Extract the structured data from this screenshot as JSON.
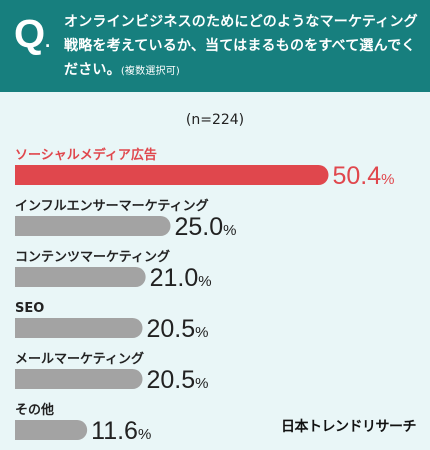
{
  "question": {
    "mark": "Q",
    "text": "オンラインビジネスのためにどのようなマーケティング戦略を考えているか、当てはまるものをすべて選んでください。",
    "note": "(複数選択可)"
  },
  "sample_label": "(n=224)",
  "brand": "日本トレンドリサーチ",
  "colors": {
    "header_bg": "#177f7e",
    "background": "#e9f6f7",
    "highlight": "#e0474d",
    "bar": "#a3a3a3"
  },
  "chart_data": {
    "type": "bar",
    "orientation": "horizontal",
    "unit": "%",
    "categories": [
      "ソーシャルメディア広告",
      "インフルエンサーマーケティング",
      "コンテンツマーケティング",
      "SEO",
      "メールマーケティング",
      "その他"
    ],
    "values": [
      50.4,
      25.0,
      21.0,
      20.5,
      20.5,
      11.6
    ],
    "value_labels": [
      "50.4",
      "25.0",
      "21.0",
      "20.5",
      "20.5",
      "11.6"
    ],
    "highlight_index": 0,
    "xlim": [
      0,
      52
    ]
  }
}
